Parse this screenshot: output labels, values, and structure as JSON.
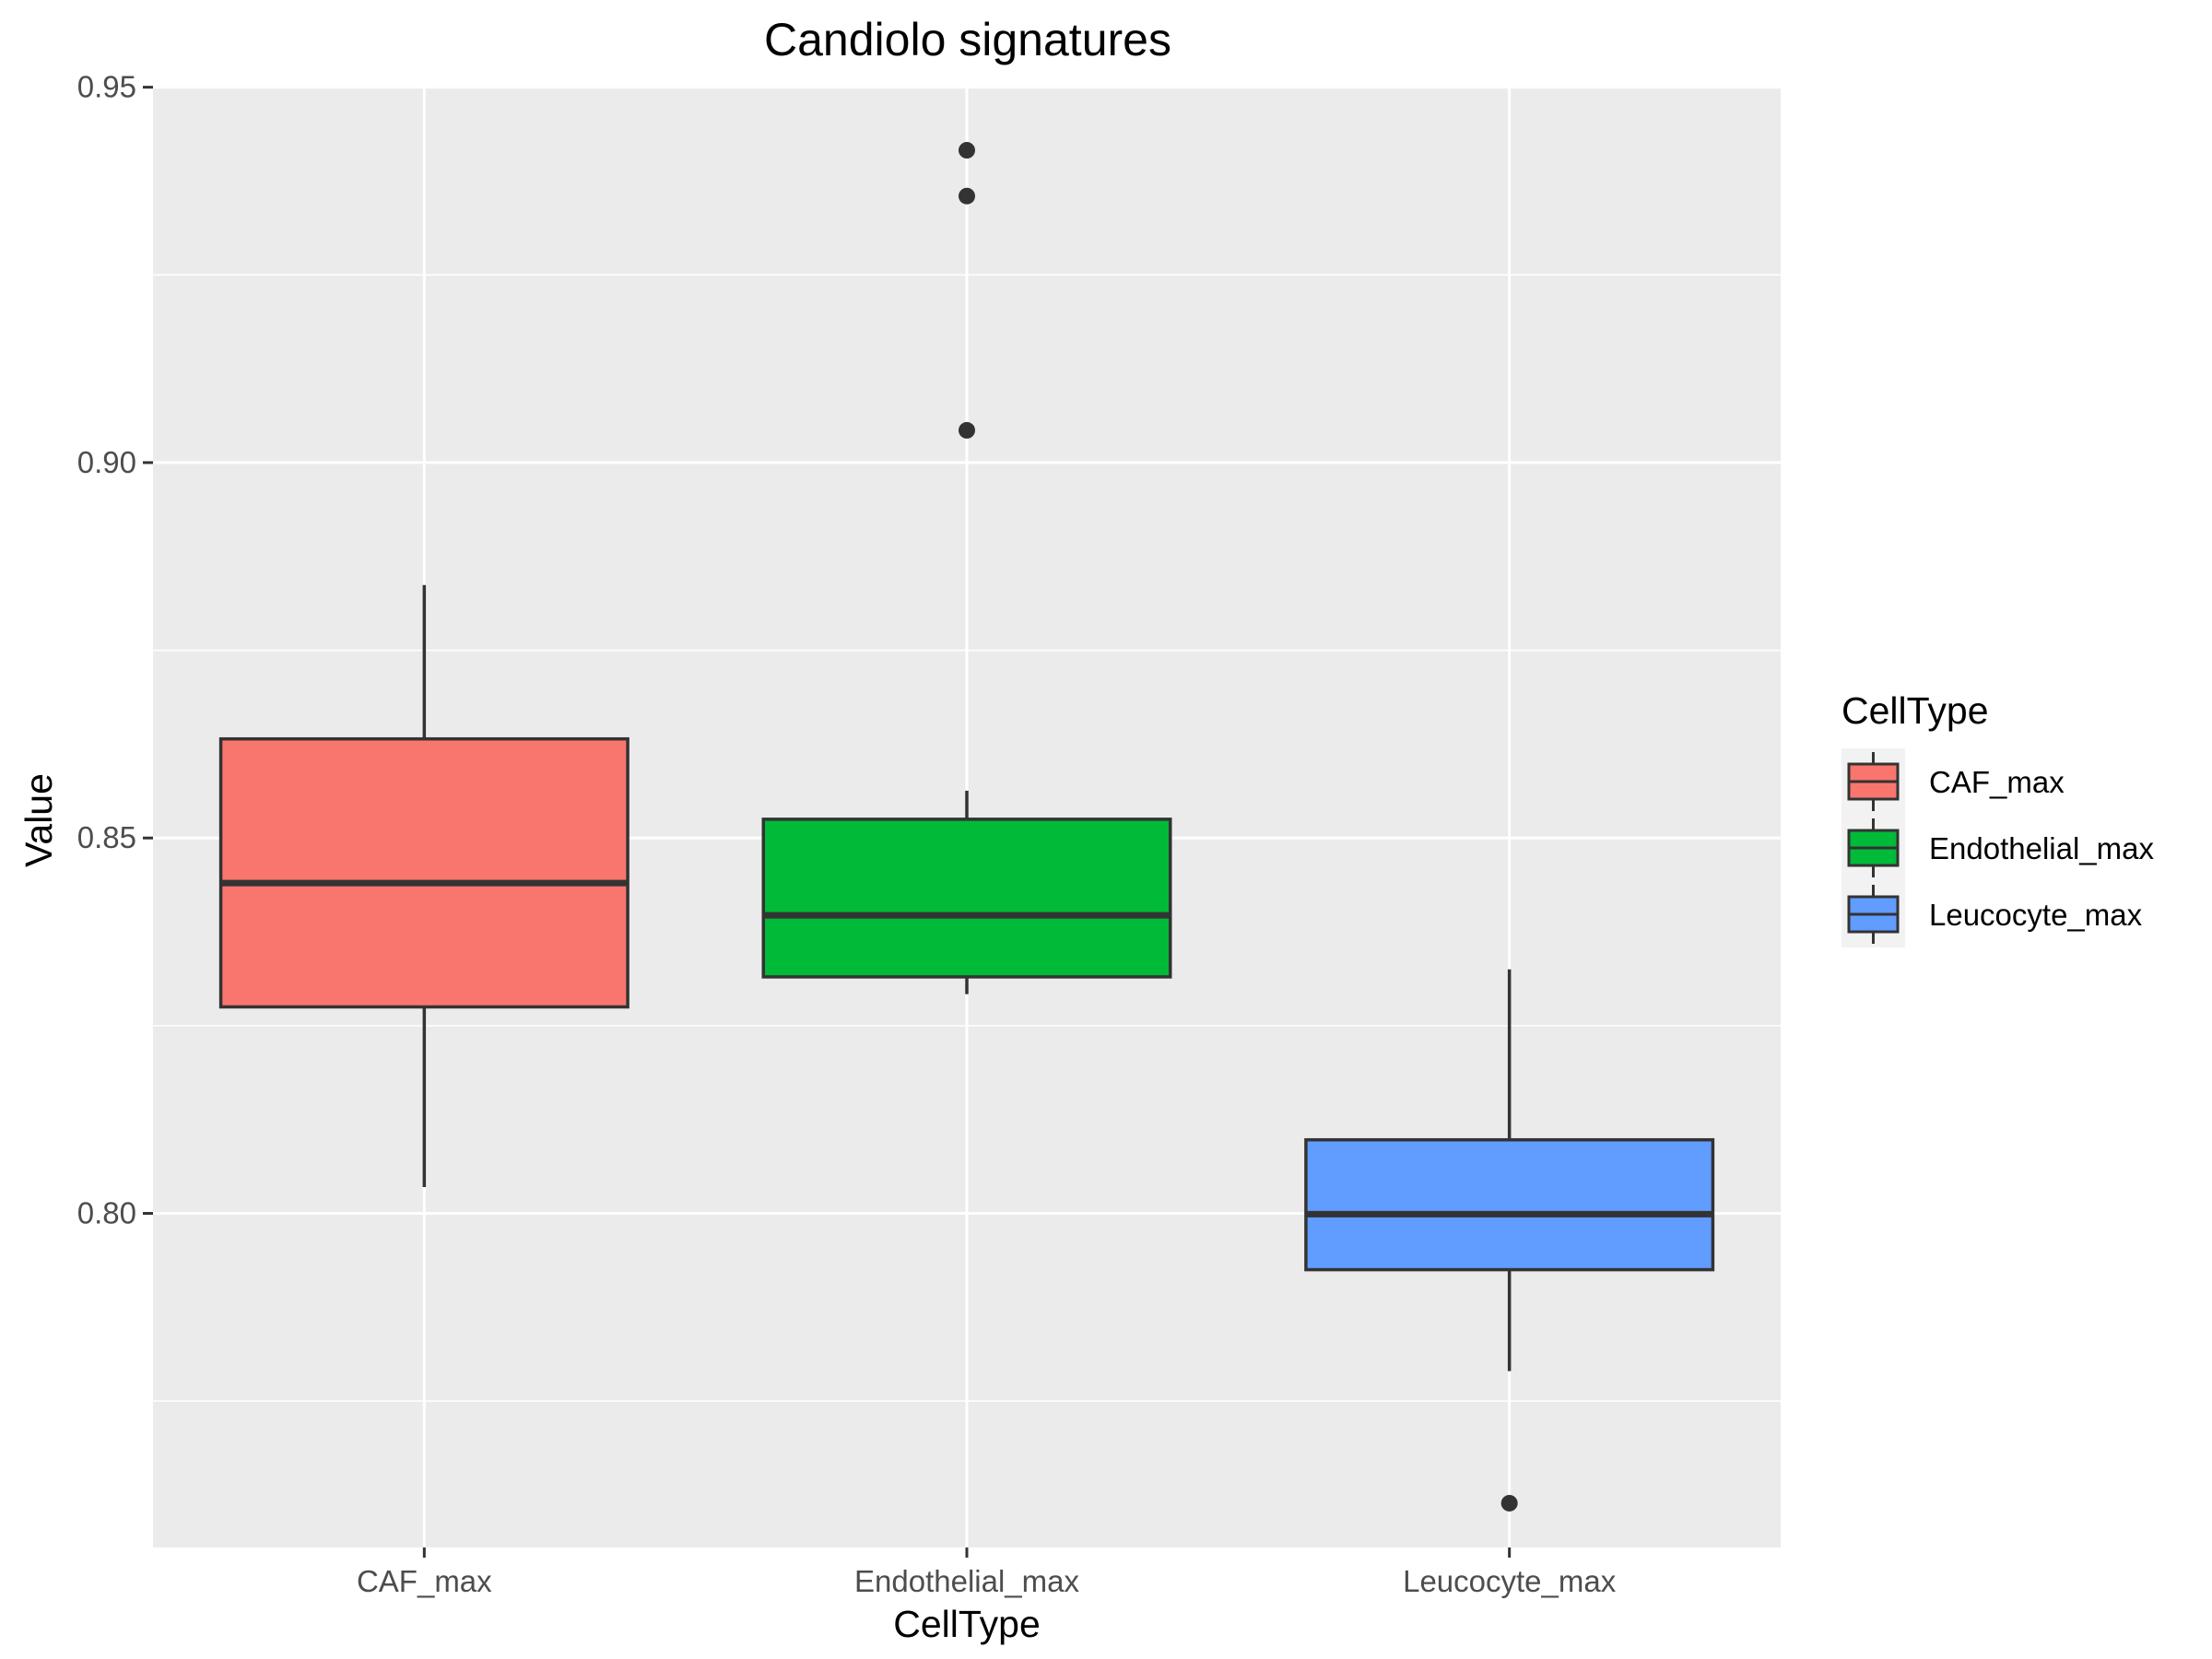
{
  "chart_data": {
    "type": "box",
    "title": "Candiolo signatures",
    "xlabel": "CellType",
    "ylabel": "Value",
    "ylim": [
      0.7555,
      0.9502
    ],
    "yticks": [
      0.8,
      0.85,
      0.9,
      0.95
    ],
    "ytick_labels": [
      "0.80",
      "0.85",
      "0.90",
      "0.95"
    ],
    "grid": true,
    "categories": [
      "CAF_max",
      "Endothelial_max",
      "Leucocyte_max"
    ],
    "boxes": [
      {
        "name": "CAF_max",
        "whisker_low": 0.8035,
        "q1": 0.8275,
        "median": 0.844,
        "q3": 0.8632,
        "whisker_high": 0.8837,
        "outliers": [],
        "fill": "#F8766D"
      },
      {
        "name": "Endothelial_max",
        "whisker_low": 0.8292,
        "q1": 0.8315,
        "median": 0.8397,
        "q3": 0.8525,
        "whisker_high": 0.8563,
        "outliers": [
          0.9043,
          0.9355,
          0.9416
        ],
        "fill": "#00BA38"
      },
      {
        "name": "Leucocyte_max",
        "whisker_low": 0.779,
        "q1": 0.7925,
        "median": 0.7999,
        "q3": 0.8098,
        "whisker_high": 0.8325,
        "outliers": [
          0.7614
        ],
        "fill": "#619CFF"
      }
    ],
    "legend": {
      "title": "CellType",
      "position": "right",
      "entries": [
        "CAF_max",
        "Endothelial_max",
        "Leucocyte_max"
      ]
    }
  }
}
